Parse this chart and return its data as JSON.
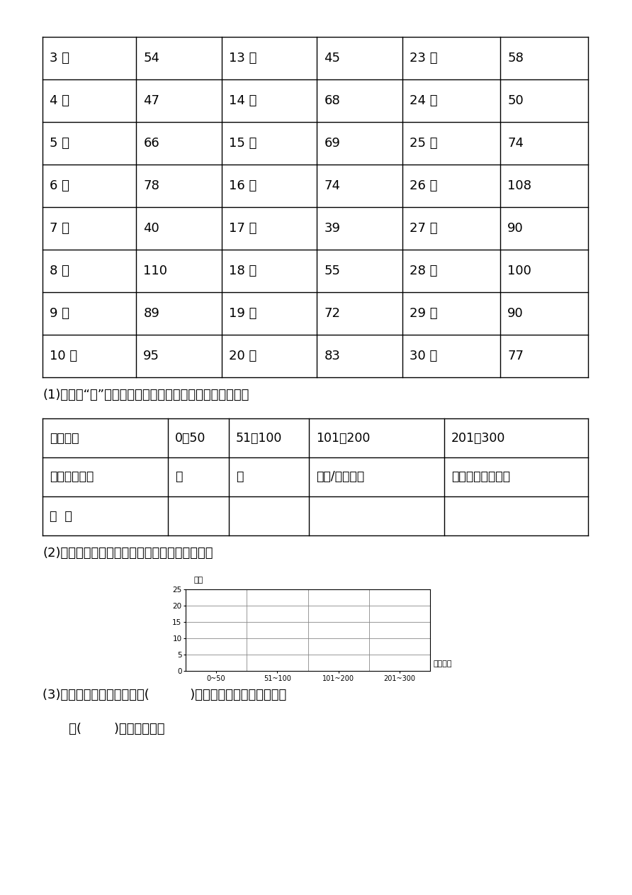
{
  "bg_color": "#ffffff",
  "table1_rows": [
    [
      "3 日",
      "54",
      "13 日",
      "45",
      "23 日",
      "58"
    ],
    [
      "4 日",
      "47",
      "14 日",
      "68",
      "24 日",
      "50"
    ],
    [
      "5 日",
      "66",
      "15 日",
      "69",
      "25 日",
      "74"
    ],
    [
      "6 日",
      "78",
      "16 日",
      "74",
      "26 日",
      "108"
    ],
    [
      "7 日",
      "40",
      "17 日",
      "39",
      "27 日",
      "90"
    ],
    [
      "8 日",
      "110",
      "18 日",
      "55",
      "28 日",
      "100"
    ],
    [
      "9 日",
      "89",
      "19 日",
      "72",
      "29 日",
      "90"
    ],
    [
      "10 日",
      "95",
      "20 日",
      "83",
      "30 日",
      "77"
    ]
  ],
  "table2_row1": [
    "污染指数",
    "0～50",
    "51～100",
    "101～200",
    "201～300"
  ],
  "table2_row2": [
    "空气质量状况",
    "优",
    "良",
    "轻微/轻度污染",
    "中度和中度重污染"
  ],
  "table2_row3": [
    "天  数",
    "",
    "",
    "",
    ""
  ],
  "text1": "(1)先用画“正”字的方法整理数据，再把统计表填写完整。",
  "text2": "(2)根据上面的统计表，完成下面的条形统计图。",
  "text3": "(3)从图上看空气质量状况是(          )的天数最多，空气质量状况",
  "text4": "   是(        )的天数最少。",
  "bar_ylabel": "天数",
  "bar_xlabel": "污染指数",
  "bar_xtick_labels": [
    "0~50",
    "51~100",
    "101~200",
    "201~300"
  ],
  "bar_yticks": [
    0,
    5,
    10,
    15,
    20,
    25
  ]
}
